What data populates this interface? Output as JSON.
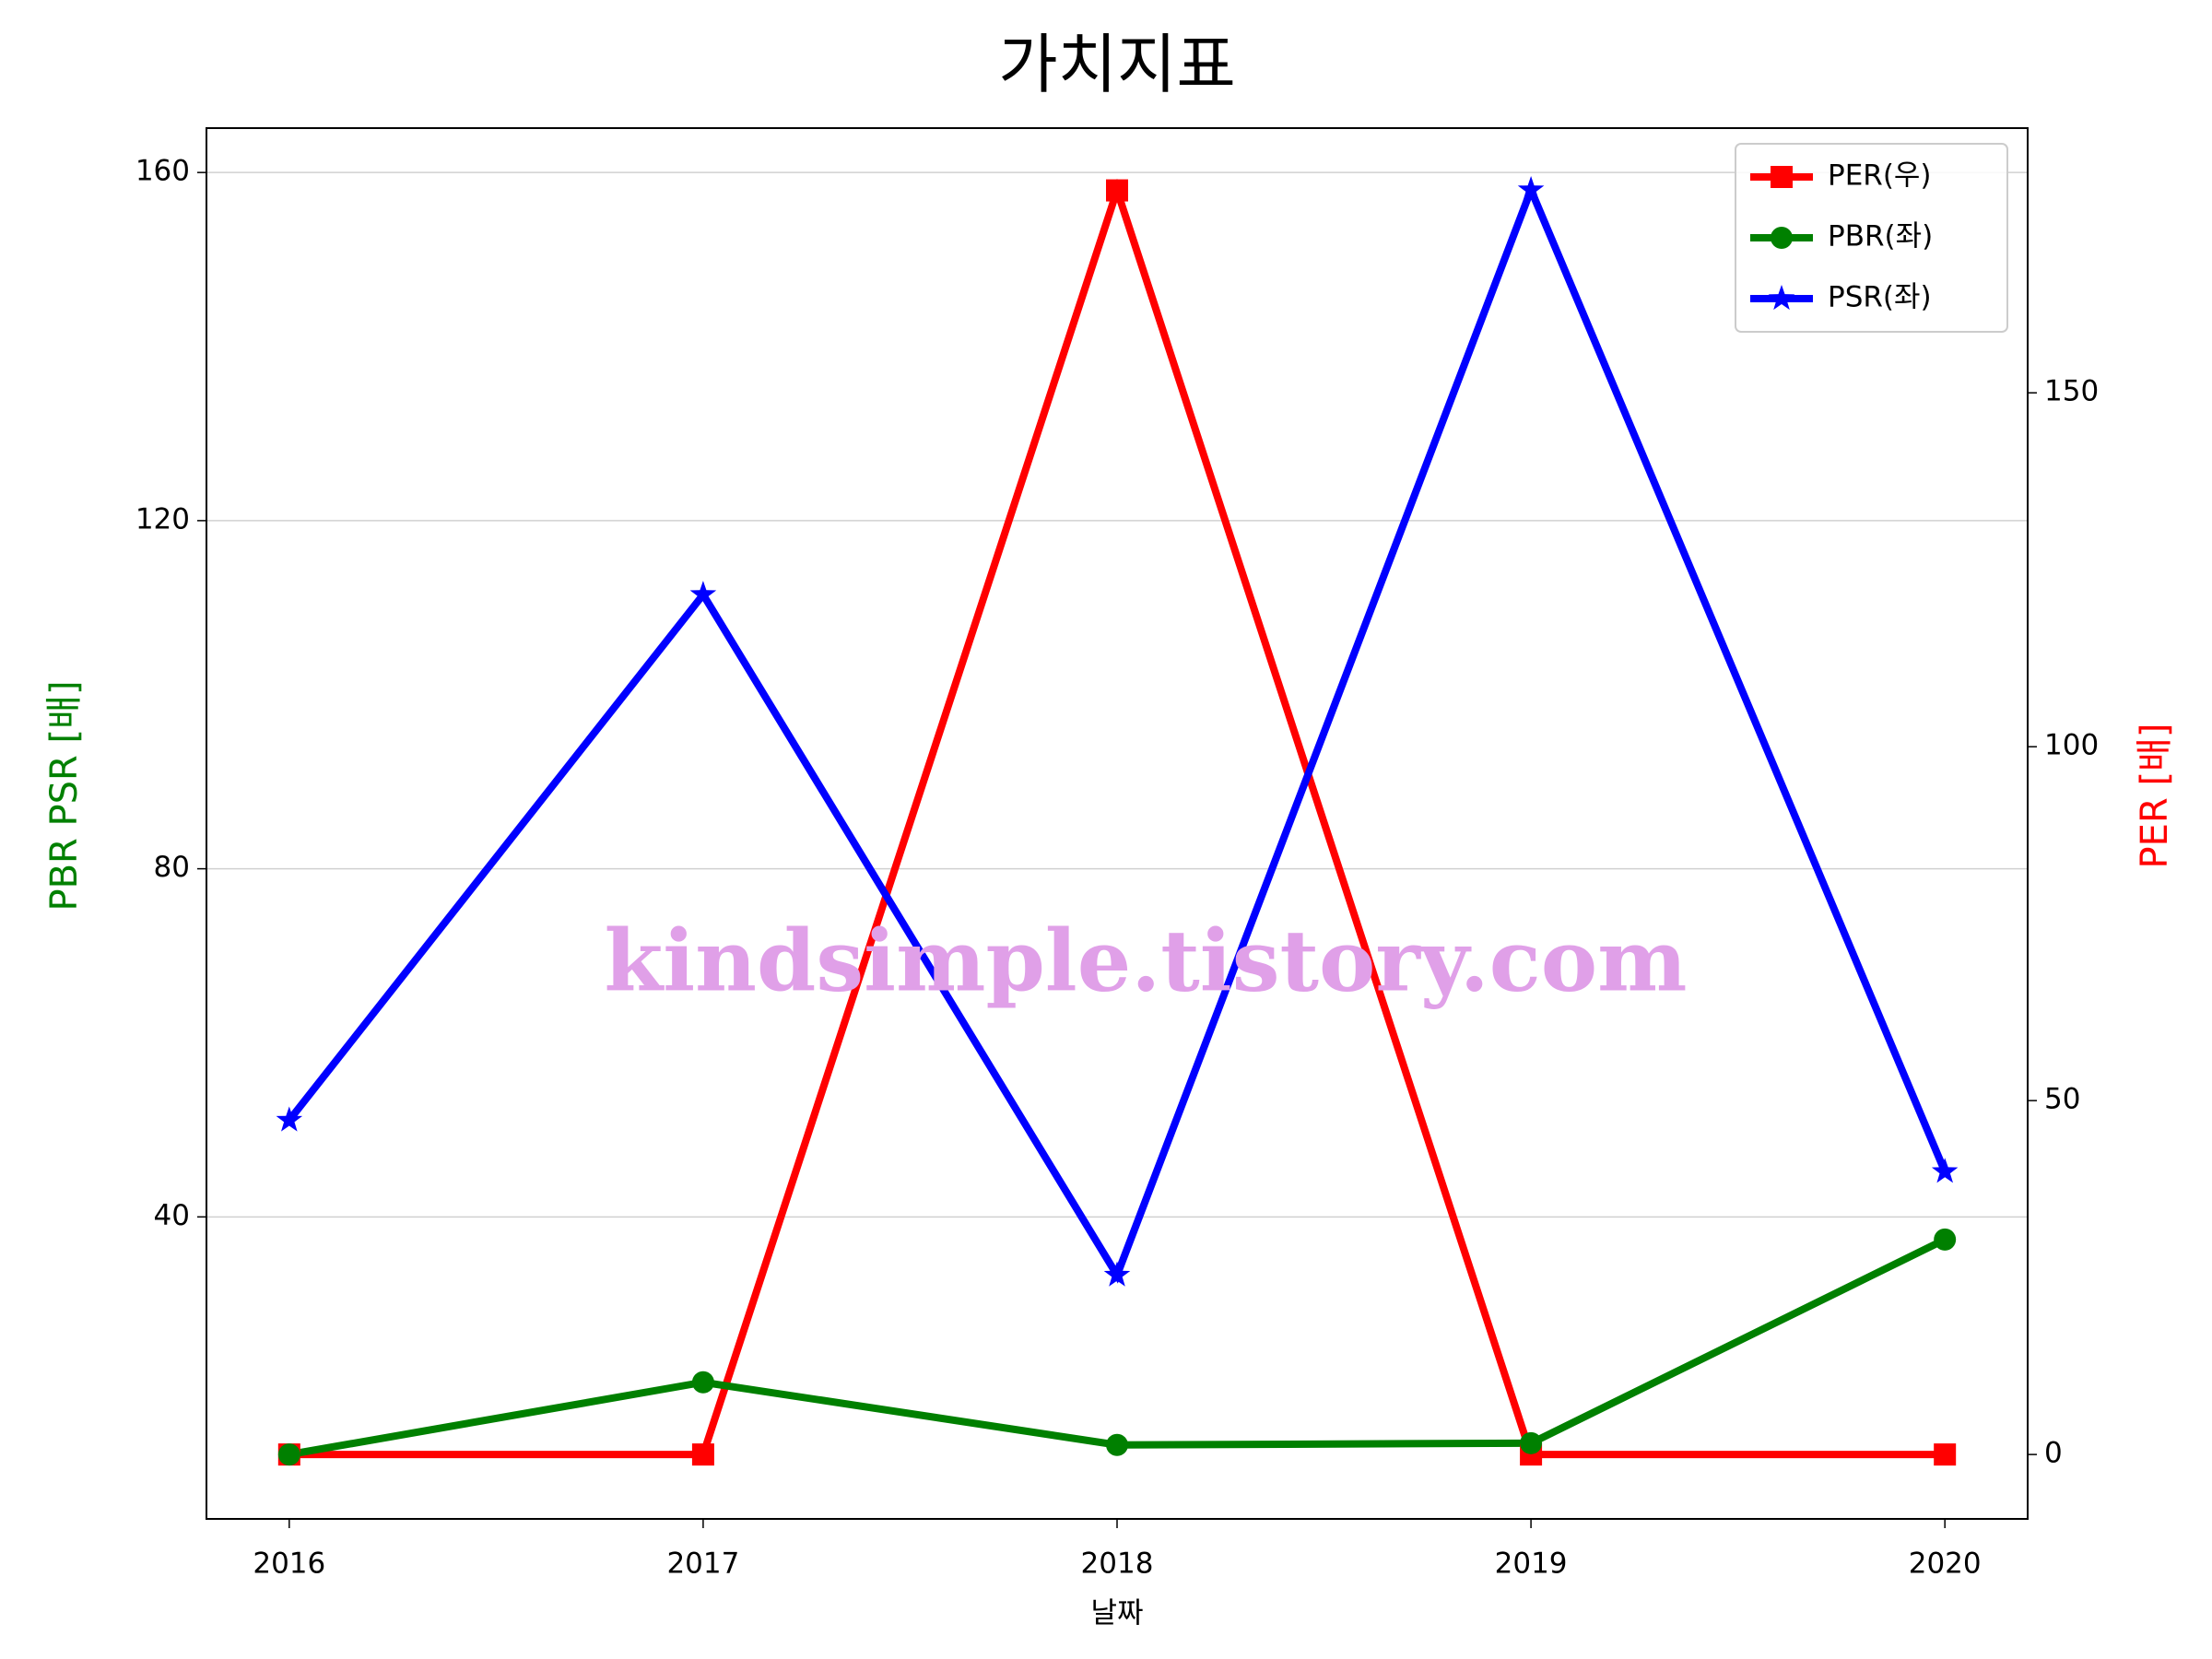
{
  "chart_data": {
    "type": "line",
    "title": "가치지표",
    "xlabel": "날짜",
    "ylabel": "PBR PSR [배]",
    "ylabel_color": "#008000",
    "y2label": "PER [배]",
    "y2label_color": "#ff0000",
    "watermark": "kindsimple.tistory.com",
    "x": [
      2016,
      2017,
      2018,
      2019,
      2020
    ],
    "xlim": [
      2015.8,
      2020.2
    ],
    "xticks": [
      2016,
      2017,
      2018,
      2019,
      2020
    ],
    "ylim": [
      5.3,
      165.1
    ],
    "yticks": [
      40,
      80,
      120,
      160
    ],
    "y2lim": [
      -9.1,
      187.4
    ],
    "y2ticks": [
      0,
      50,
      100,
      150
    ],
    "grid": true,
    "legend": "upper right",
    "series": [
      {
        "name": "PER(우)",
        "color": "#ff0000",
        "marker": "square",
        "axis": "y2",
        "values": [
          0,
          0,
          178.6,
          0,
          0
        ]
      },
      {
        "name": "PBR(좌)",
        "color": "#008000",
        "marker": "circle",
        "values": [
          12.7,
          21.0,
          13.8,
          14.0,
          37.4
        ]
      },
      {
        "name": "PSR(좌)",
        "color": "#0000ff",
        "marker": "star",
        "values": [
          51.1,
          111.5,
          33.3,
          158.0,
          45.2
        ]
      }
    ]
  }
}
